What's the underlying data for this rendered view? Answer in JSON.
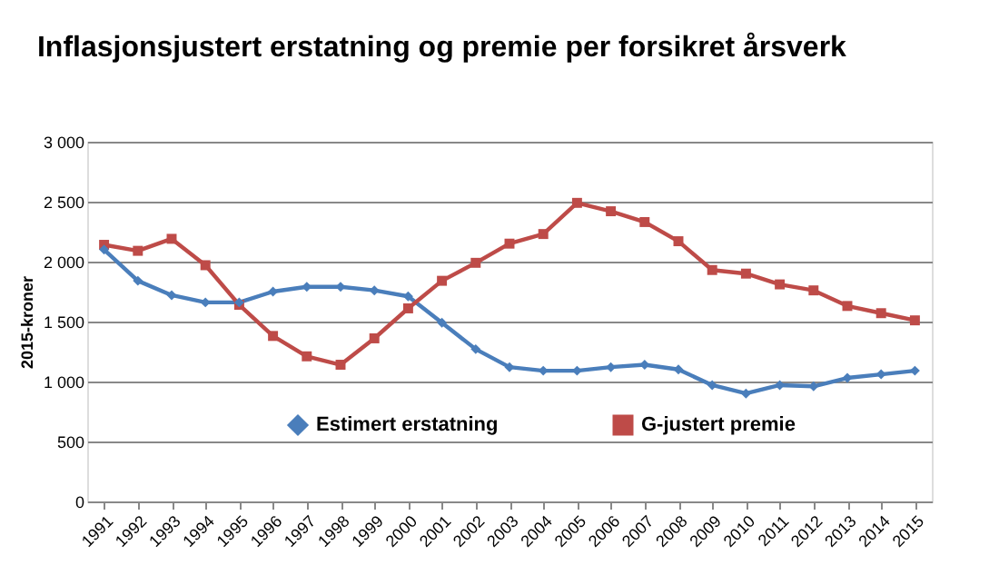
{
  "chart_data": {
    "type": "line",
    "title": "Inflasjonsjustert erstatning og premie per forsikret årsverk",
    "ylabel": "2015-kroner",
    "categories": [
      "1991",
      "1992",
      "1993",
      "1994",
      "1995",
      "1996",
      "1997",
      "1998",
      "1999",
      "2000",
      "2001",
      "2002",
      "2003",
      "2004",
      "2005",
      "2006",
      "2007",
      "2008",
      "2009",
      "2010",
      "2011",
      "2012",
      "2013",
      "2014",
      "2015"
    ],
    "series": [
      {
        "name": "Estimert erstatning",
        "color": "#4a7ebb",
        "marker": "diamond",
        "values": [
          2100,
          1840,
          1720,
          1660,
          1660,
          1750,
          1790,
          1790,
          1760,
          1710,
          1490,
          1270,
          1120,
          1090,
          1090,
          1120,
          1140,
          1100,
          970,
          900,
          970,
          960,
          1030,
          1060,
          1090
        ]
      },
      {
        "name": "G-justert premie",
        "color": "#be4b48",
        "marker": "square",
        "values": [
          2140,
          2090,
          2190,
          1970,
          1640,
          1380,
          1210,
          1140,
          1360,
          1610,
          1840,
          1990,
          2150,
          2230,
          2490,
          2420,
          2330,
          2170,
          1930,
          1900,
          1810,
          1760,
          1630,
          1570,
          1510
        ]
      }
    ],
    "ylim": [
      0,
      3000
    ],
    "yticks": [
      0,
      500,
      {
        "value": 1000,
        "label": "1 000"
      },
      {
        "value": 1500,
        "label": "1 500"
      },
      {
        "value": 2000,
        "label": "2 000"
      },
      {
        "value": 2500,
        "label": "2 500"
      },
      {
        "value": 3000,
        "label": "3 000"
      }
    ],
    "grid": "y",
    "legend": "bottom",
    "line_style": "solid"
  }
}
